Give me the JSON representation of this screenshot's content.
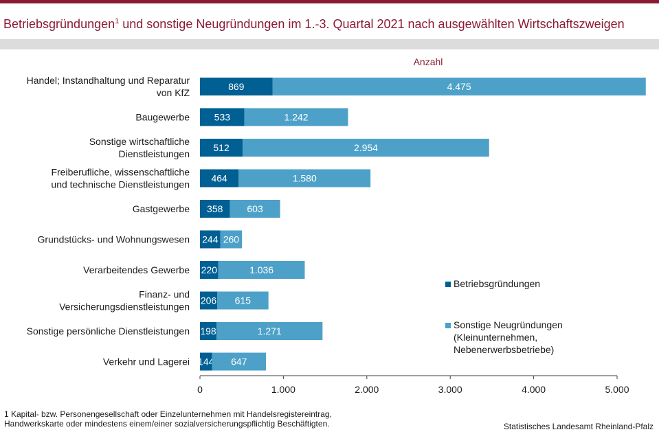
{
  "title": {
    "main": "Betriebsgründungen",
    "sup": "1",
    "rest": " und sonstige Neugründungen im  1.-3. Quartal 2021 nach ausgewählten Wirtschaftszweigen"
  },
  "colors": {
    "accent": "#8b1a32",
    "betrieb": "#005f93",
    "sonstige": "#4da1c8",
    "band": "#dcdcdc"
  },
  "chart_data": {
    "type": "bar",
    "orientation": "horizontal",
    "stacked": true,
    "unit_label": "Anzahl",
    "categories": [
      [
        "Handel; Instandhaltung und Reparatur",
        "von KfZ"
      ],
      [
        "Baugewerbe"
      ],
      [
        "Sonstige wirtschaftliche",
        "Dienstleistungen"
      ],
      [
        "Freiberufliche, wissenschaftliche",
        "und technische Dienstleistungen"
      ],
      [
        "Gastgewerbe"
      ],
      [
        "Grundstücks- und Wohnungswesen"
      ],
      [
        "Verarbeitendes Gewerbe"
      ],
      [
        "Finanz- und",
        "Versicherungsdienstleistungen"
      ],
      [
        "Sonstige persönliche Dienstleistungen"
      ],
      [
        "Verkehr und Lagerei"
      ]
    ],
    "series": [
      {
        "name": "Betriebsgründungen",
        "values": [
          869,
          533,
          512,
          464,
          358,
          244,
          220,
          206,
          198,
          144
        ],
        "labels": [
          "869",
          "533",
          "512",
          "464",
          "358",
          "244",
          "220",
          "206",
          "198",
          "144"
        ]
      },
      {
        "name": [
          "Sonstige Neugründungen",
          "(Kleinunternehmen,",
          "Nebenerwerbsbetriebe)"
        ],
        "values": [
          4475,
          1242,
          2954,
          1580,
          603,
          260,
          1036,
          615,
          1271,
          647
        ],
        "labels": [
          "4.475",
          "1.242",
          "2.954",
          "1.580",
          "603",
          "260",
          "1.036",
          "615",
          "1.271",
          "647"
        ]
      }
    ],
    "xlim": [
      0,
      5000
    ],
    "xticks": [
      0,
      1000,
      2000,
      3000,
      4000,
      5000
    ],
    "xtick_labels": [
      "0",
      "1.000",
      "2.000",
      "3.000",
      "4.000",
      "5.000"
    ],
    "grid": false,
    "legend_position": "right"
  },
  "footnote": {
    "line1": "1 Kapital- bzw. Personengesellschaft  oder  Einzelunternehmen  mit  Handelsregistereintrag,",
    "line2": "Handwerkskarte  oder  mindestens  einem/einer  sozialversicherungspflichtig  Beschäftigten."
  },
  "source": "Statistisches Landesamt  Rheinland-Pfalz"
}
